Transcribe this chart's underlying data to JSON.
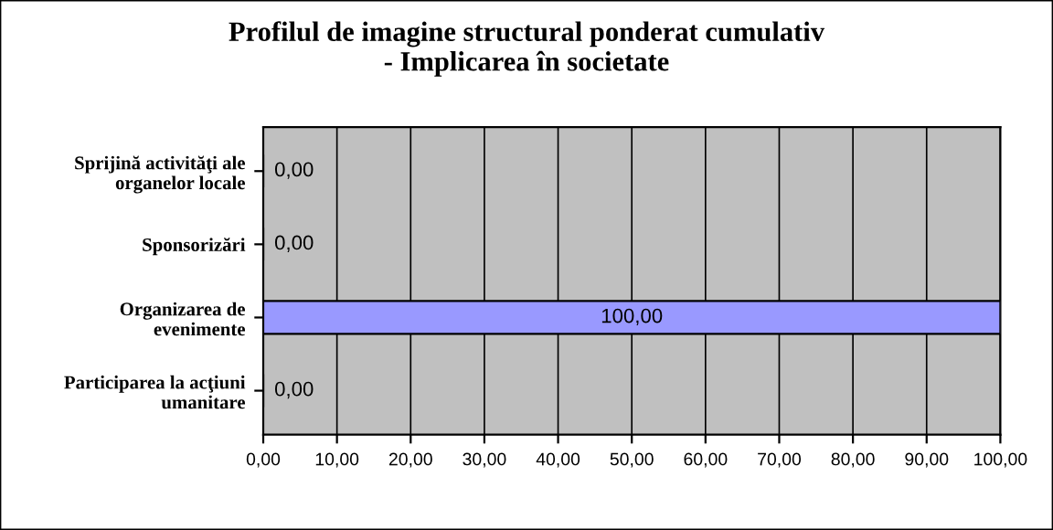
{
  "chart_data": {
    "type": "bar",
    "orientation": "horizontal",
    "title": "Profilul de imagine structural ponderat cumulativ\n- Implicarea în societate",
    "categories": [
      "Sprijină activităţi ale\norganelor locale",
      "Sponsorizări",
      "Organizarea de\nevenimente",
      "Participarea la acţiuni\numanitare"
    ],
    "values": [
      0,
      0,
      100,
      0
    ],
    "value_labels": [
      "0,00",
      "0,00",
      "100,00",
      "0,00"
    ],
    "color": "#9999ff",
    "xlim": [
      0,
      100
    ],
    "xticks": [
      {
        "value": 0,
        "label": "0,00"
      },
      {
        "value": 10,
        "label": "10,00"
      },
      {
        "value": 20,
        "label": "20,00"
      },
      {
        "value": 30,
        "label": "30,00"
      },
      {
        "value": 40,
        "label": "40,00"
      },
      {
        "value": 50,
        "label": "50,00"
      },
      {
        "value": 60,
        "label": "60,00"
      },
      {
        "value": 70,
        "label": "70,00"
      },
      {
        "value": 80,
        "label": "80,00"
      },
      {
        "value": 90,
        "label": "90,00"
      },
      {
        "value": 100,
        "label": "100,00"
      }
    ],
    "grid": "x"
  }
}
